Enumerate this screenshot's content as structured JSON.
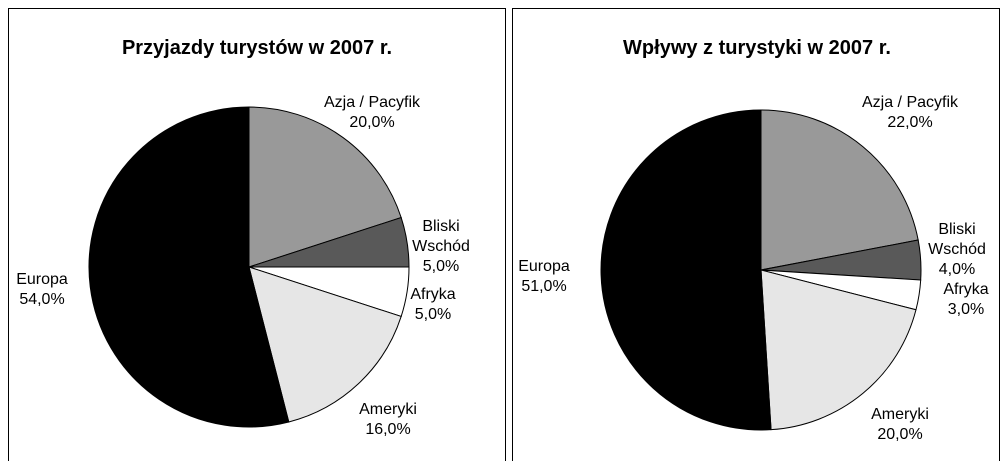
{
  "chart_data": [
    {
      "type": "pie",
      "title": "Przyjazdy turystów w 2007 r.",
      "categories": [
        "Azja / Pacyfik",
        "Bliski Wschód",
        "Afryka",
        "Ameryki",
        "Europa"
      ],
      "values": [
        20,
        5,
        5,
        16,
        54
      ],
      "value_labels": [
        "20,0%",
        "5,0%",
        "5,0%",
        "16,0%",
        "54,0%"
      ],
      "colors": [
        "#999999",
        "#595959",
        "#ffffff",
        "#e6e6e6",
        "#000000"
      ]
    },
    {
      "type": "pie",
      "title": "Wpływy z turystyki w 2007 r.",
      "categories": [
        "Azja / Pacyfik",
        "Bliski Wschód",
        "Afryka",
        "Ameryki",
        "Europa"
      ],
      "values": [
        22,
        4,
        3,
        20,
        51
      ],
      "value_labels": [
        "22,0%",
        "4,0%",
        "3,0%",
        "20,0%",
        "51,0%"
      ],
      "colors": [
        "#999999",
        "#595959",
        "#ffffff",
        "#e6e6e6",
        "#000000"
      ]
    }
  ]
}
